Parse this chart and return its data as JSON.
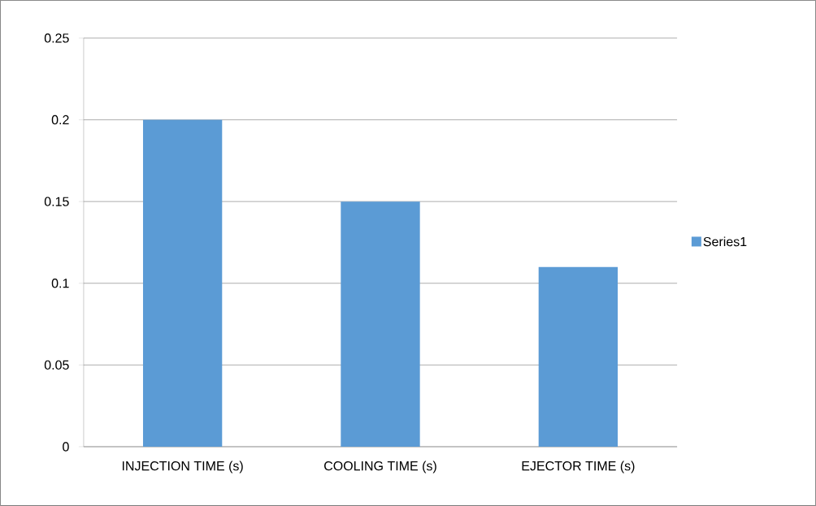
{
  "chart_data": {
    "type": "bar",
    "categories": [
      "INJECTION TIME (s)",
      "COOLING TIME (s)",
      "EJECTOR TIME (s)"
    ],
    "series": [
      {
        "name": "Series1",
        "color": "#5b9bd5",
        "values": [
          0.2,
          0.15,
          0.11
        ]
      }
    ],
    "ylim": [
      0,
      0.25
    ],
    "yticks": [
      0,
      0.05,
      0.1,
      0.15,
      0.2,
      0.25
    ],
    "grid": "y",
    "legend": "right"
  }
}
